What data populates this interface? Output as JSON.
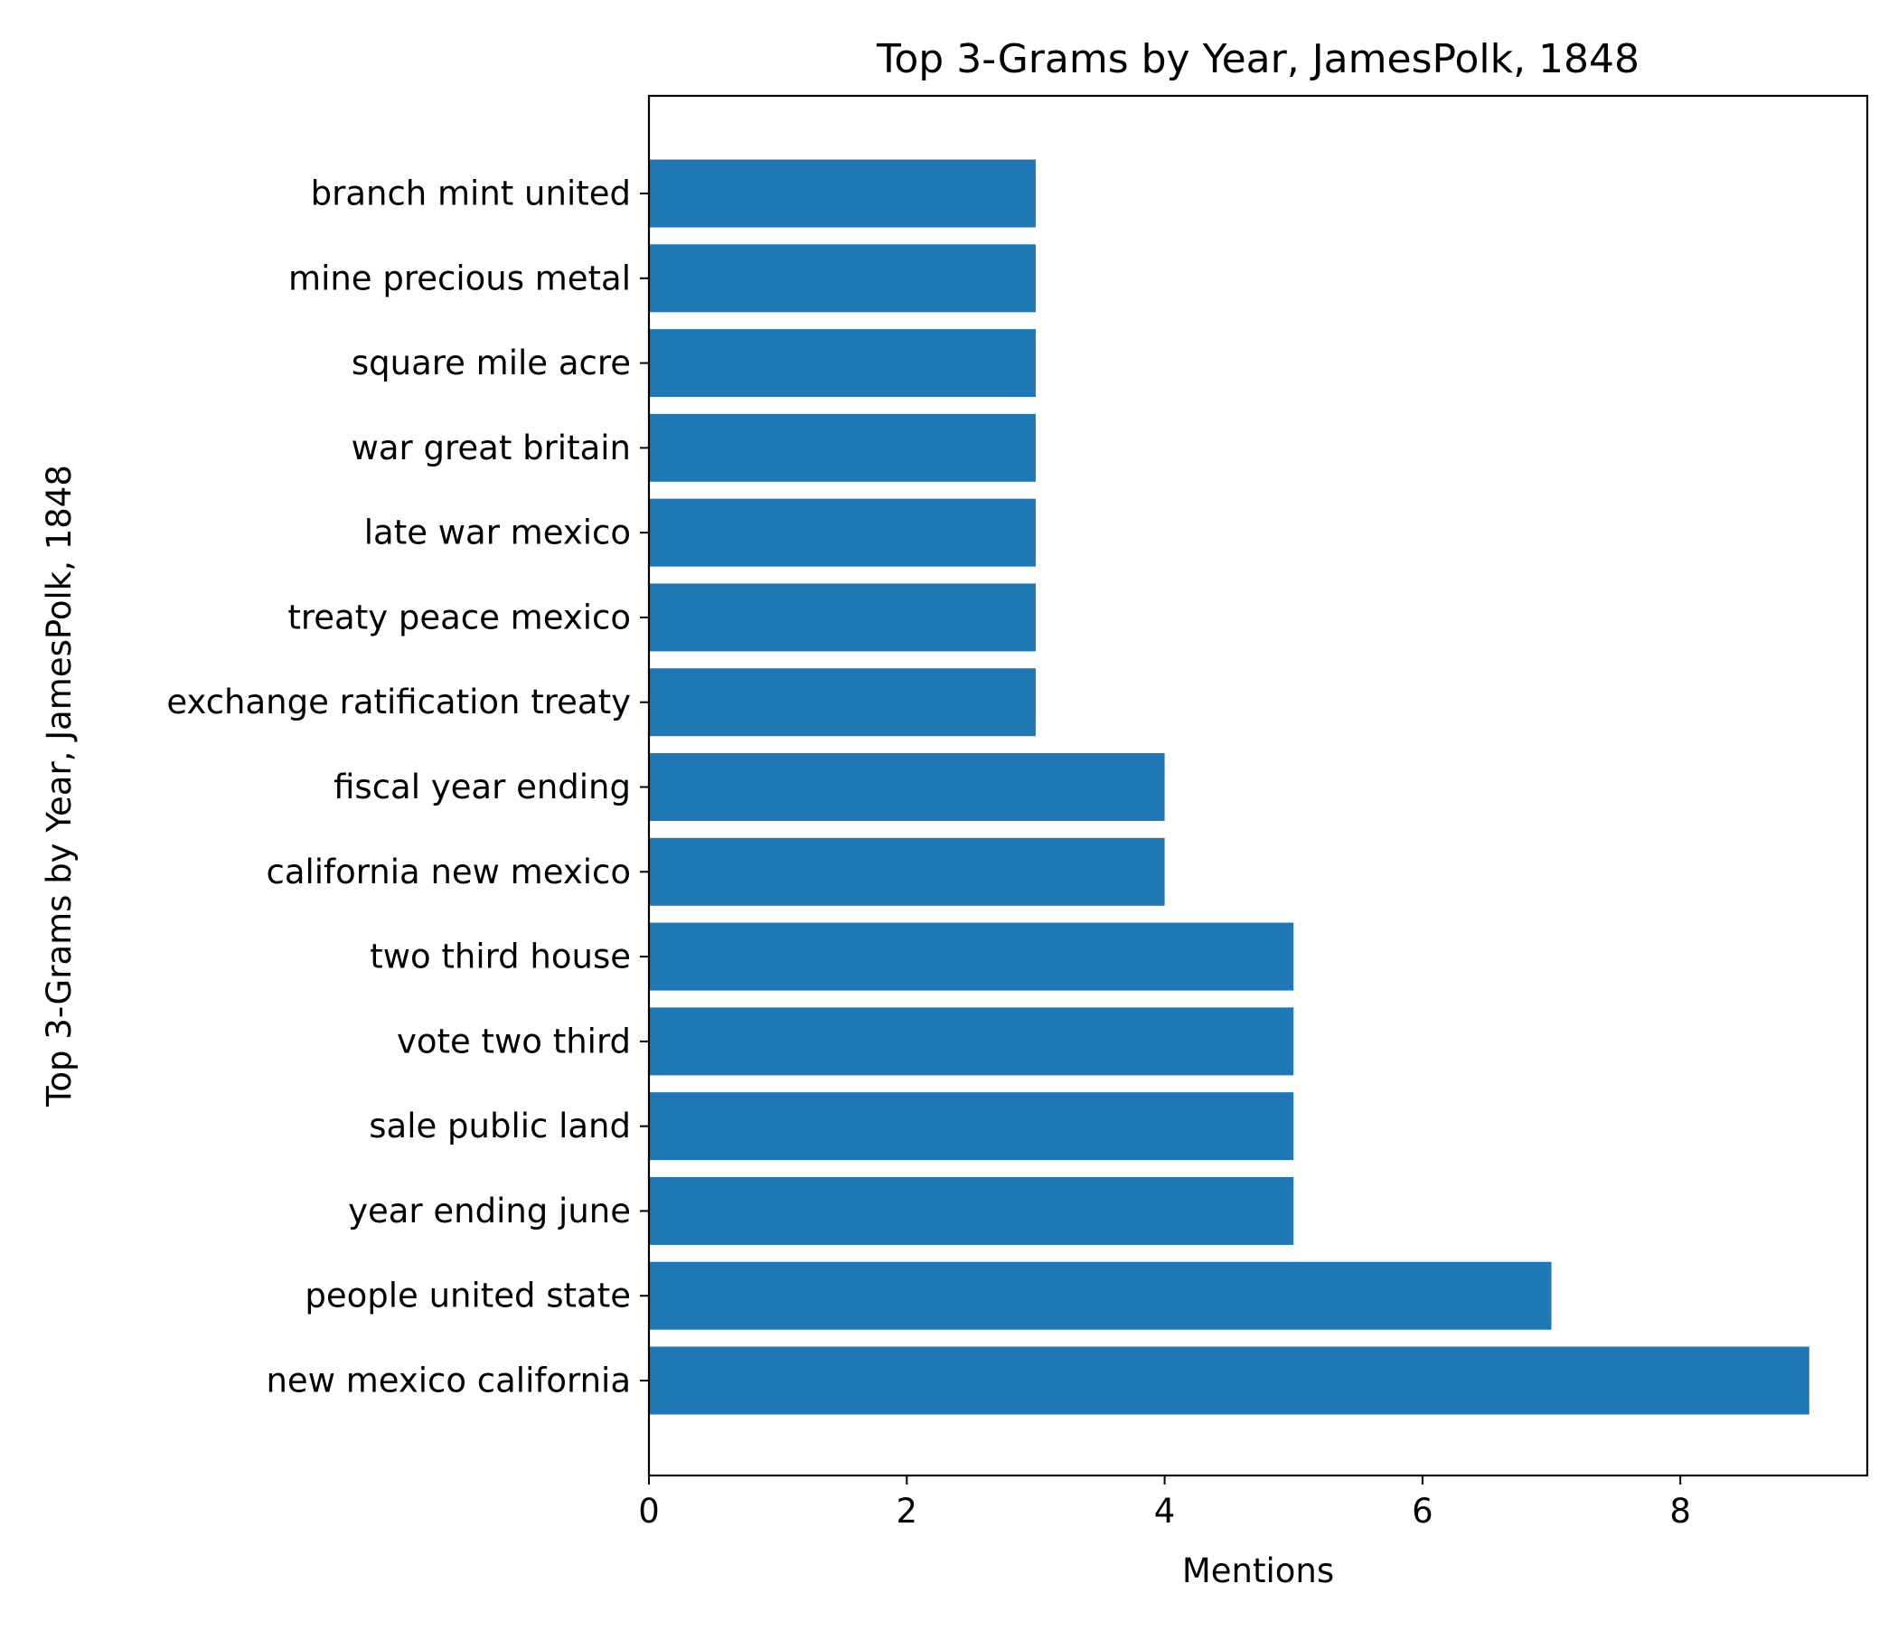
{
  "chart_data": {
    "type": "bar",
    "orientation": "horizontal",
    "title": "Top 3-Grams by Year, JamesPolk, 1848",
    "xlabel": "Mentions",
    "ylabel": "Top 3-Grams by Year, JamesPolk, 1848",
    "categories": [
      "new mexico california",
      "people united state",
      "year ending june",
      "sale public land",
      "vote two third",
      "two third house",
      "california new mexico",
      "fiscal year ending",
      "exchange ratification treaty",
      "treaty peace mexico",
      "late war mexico",
      "war great britain",
      "square mile acre",
      "mine precious metal",
      "branch mint united"
    ],
    "values": [
      9,
      7,
      5,
      5,
      5,
      5,
      4,
      4,
      3,
      3,
      3,
      3,
      3,
      3,
      3
    ],
    "xlim": [
      0,
      9.45
    ],
    "xticks": [
      0,
      2,
      4,
      6,
      8
    ],
    "xtick_labels": [
      "0",
      "2",
      "4",
      "6",
      "8"
    ],
    "bar_color": "#1f77b4",
    "grid": false,
    "legend": "none"
  }
}
